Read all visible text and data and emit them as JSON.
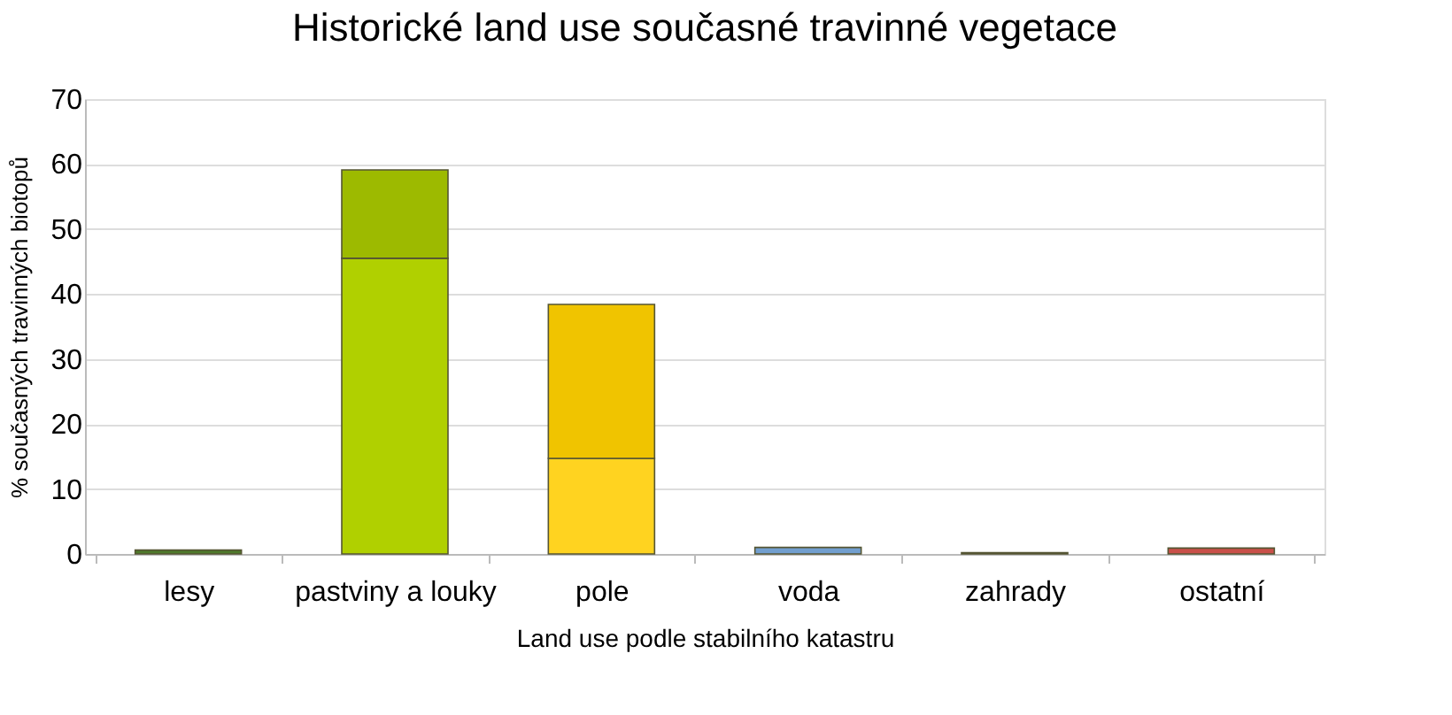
{
  "chart_data": {
    "type": "bar",
    "title": "Historické land use současné travinné vegetace",
    "xlabel": "Land use podle stabilního katastru",
    "ylabel": "% současných travinných biotopů",
    "categories": [
      "lesy",
      "pastviny a louky",
      "pole",
      "voda",
      "zahrady",
      "ostatní"
    ],
    "stacked": true,
    "series": [
      {
        "colors": [
          "#4f7a2b",
          "#b0d000",
          "#ffd320",
          "#729fcf",
          "#666666",
          "#c9504a"
        ],
        "values": [
          0.6,
          45.5,
          14.7,
          1.0,
          0.2,
          0.9
        ]
      },
      {
        "colors": [
          "#4f7a2b",
          "#9dba00",
          "#f0c400",
          "#729fcf",
          "#666666",
          "#c9504a"
        ],
        "values": [
          null,
          13.6,
          23.7,
          null,
          null,
          null
        ]
      }
    ],
    "ylim": [
      0,
      70
    ],
    "yticks": [
      0,
      10,
      20,
      30,
      40,
      50,
      60,
      70
    ],
    "grid": "y"
  }
}
